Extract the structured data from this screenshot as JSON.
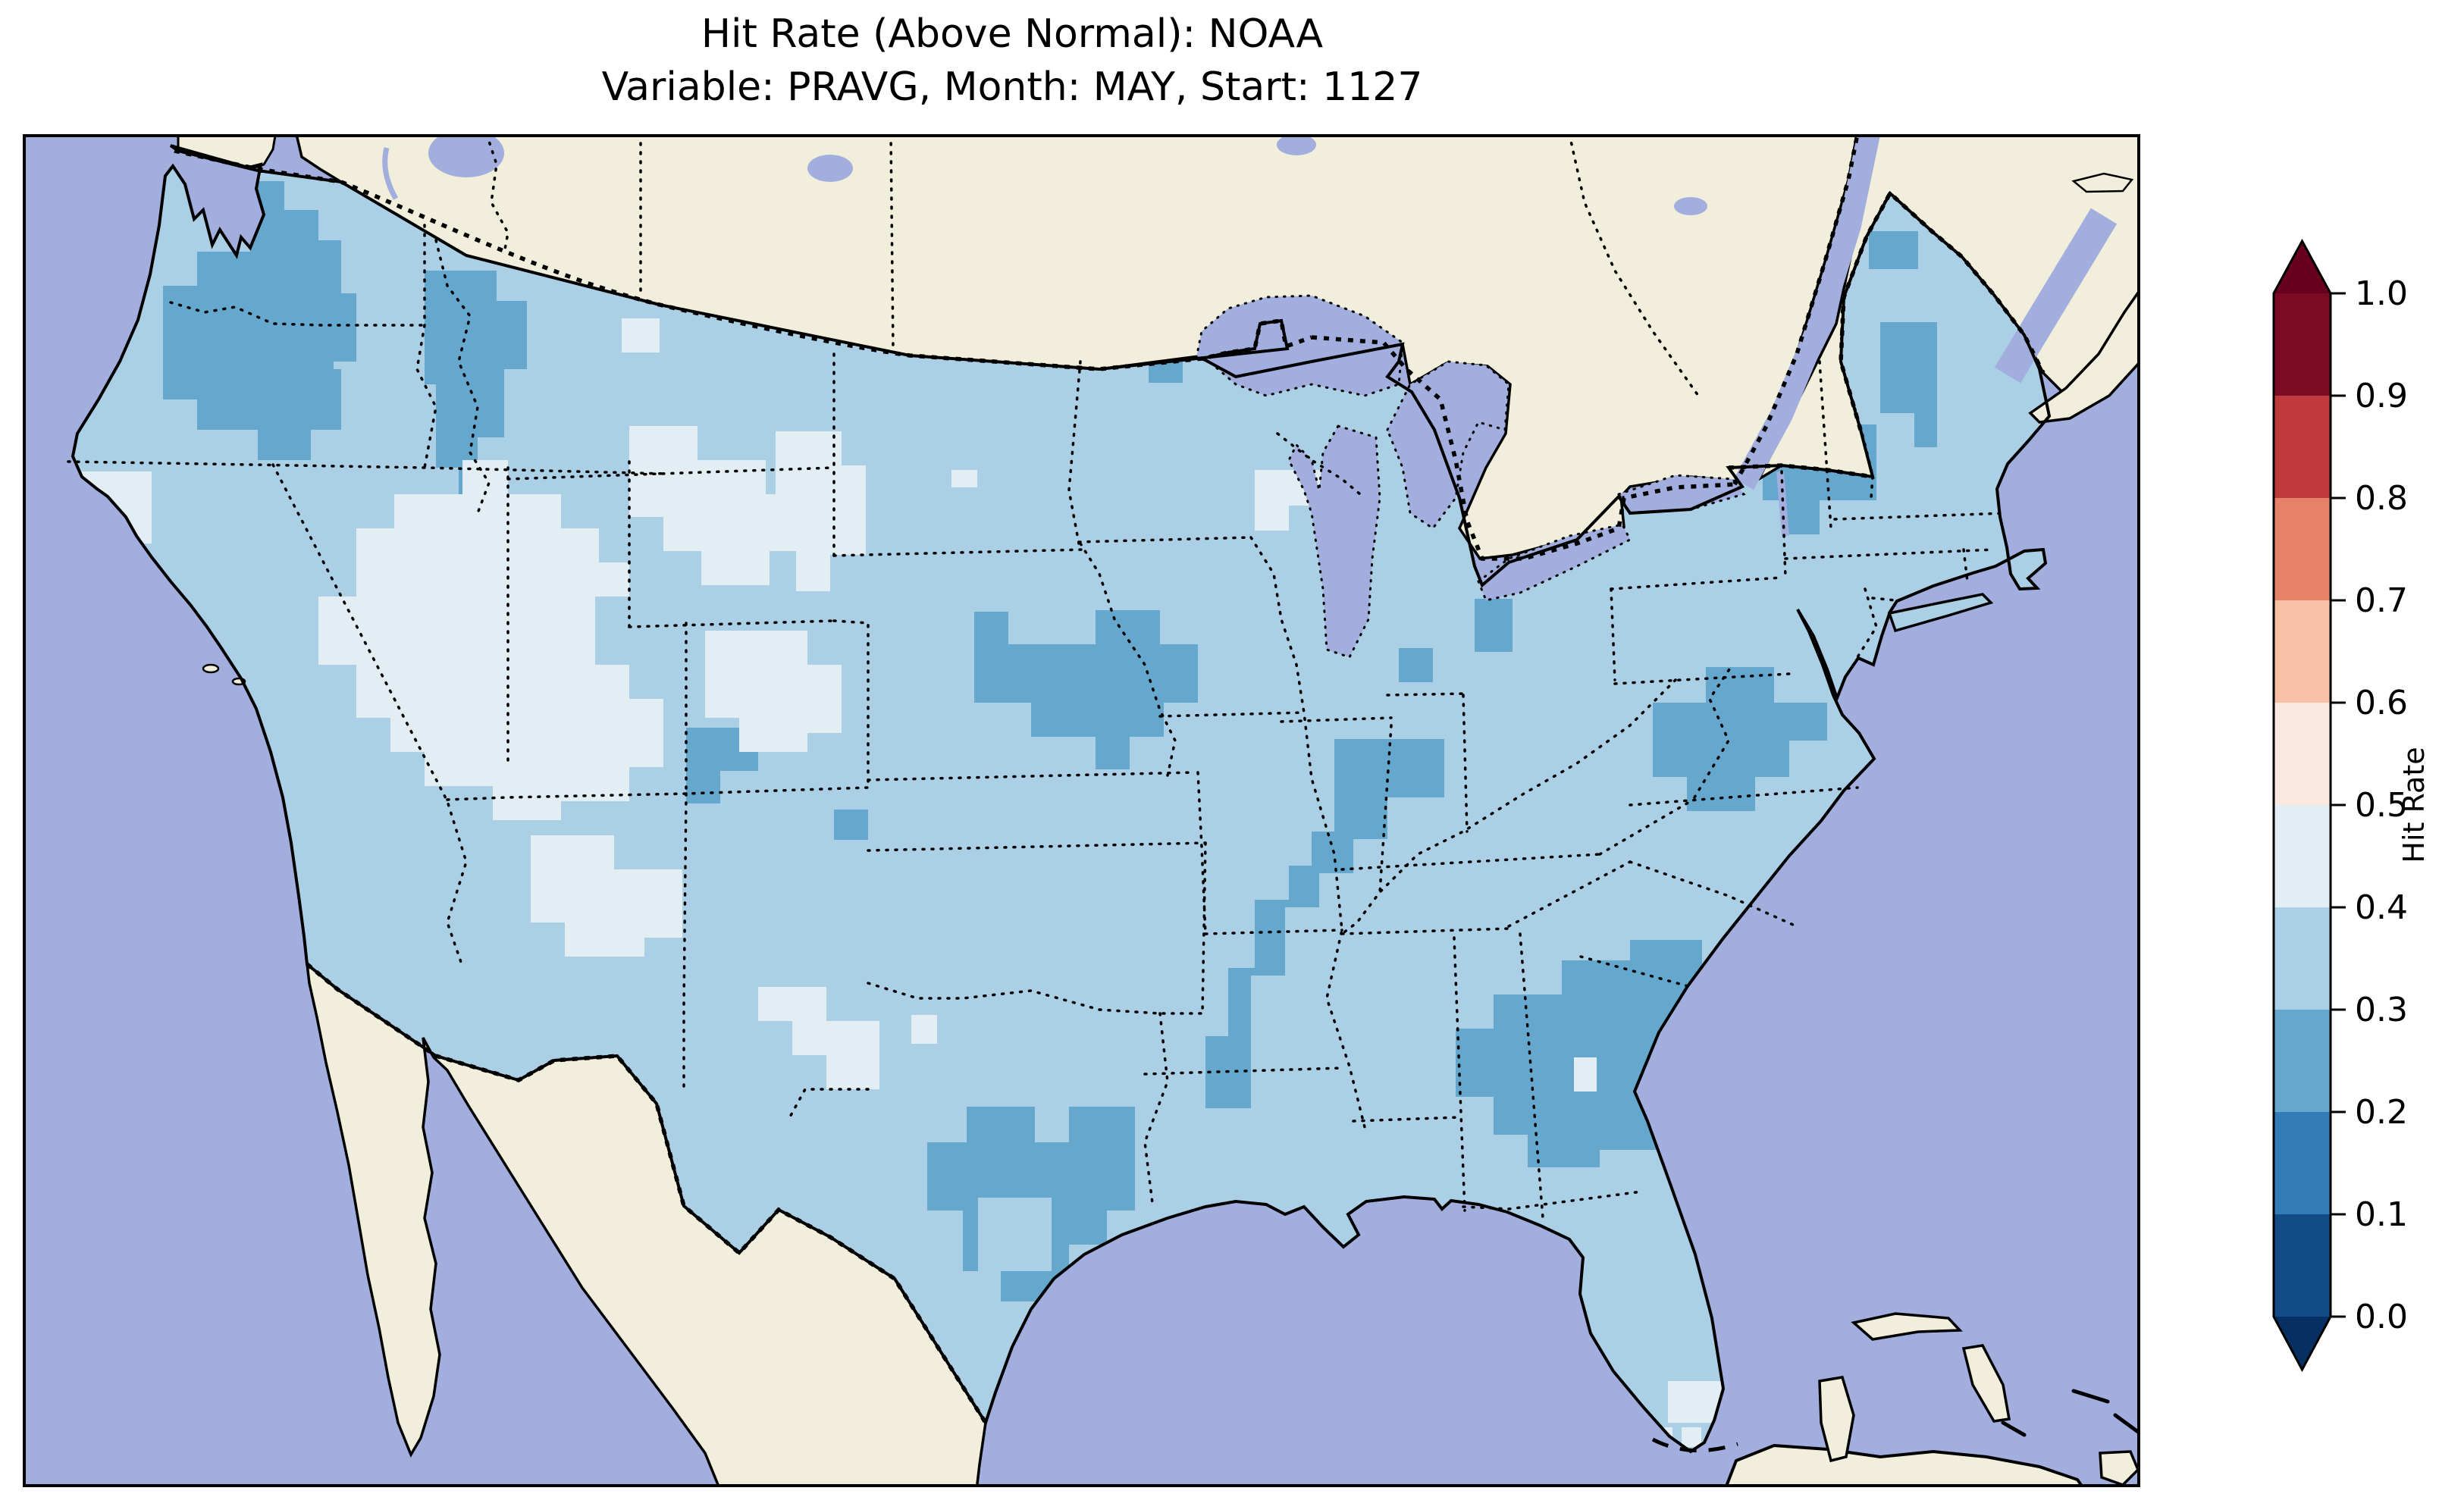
{
  "title": {
    "line1": "Hit Rate (Above Normal): NOAA",
    "line2": "Variable: PRAVG, Month: MAY, Start: 1127"
  },
  "colors": {
    "ocean": "#a2aedd",
    "lake": "#a2aedd",
    "land": "#f1eedb",
    "cell_base": "#abd0e6",
    "cell_dark": "#65a7cd",
    "cell_pale": "#e3edf4",
    "coastline": "#000000",
    "frame": "#000000"
  },
  "colorbar": {
    "label": "Hit Rate",
    "tick_labels": [
      "0.0",
      "0.1",
      "0.2",
      "0.3",
      "0.4",
      "0.5",
      "0.6",
      "0.7",
      "0.8",
      "0.9",
      "1.0"
    ],
    "bin_colors": [
      "#134b87",
      "#327cb7",
      "#65a7cd",
      "#abd0e6",
      "#e3edf4",
      "#fae9df",
      "#f8c0a4",
      "#e58267",
      "#c03a3d",
      "#7d0a23"
    ],
    "under_color": "#053061",
    "over_color": "#67001f",
    "outline_color": "#000000"
  },
  "chart_data": {
    "type": "heatmap",
    "title": "Hit Rate (Above Normal): NOAA",
    "subtitle": "Variable: PRAVG, Month: MAY, Start: 1127",
    "colorbar_label": "Hit Rate",
    "value_range": [
      0.0,
      1.0
    ],
    "bin_edges": [
      0.0,
      0.1,
      0.2,
      0.3,
      0.4,
      0.5,
      0.6,
      0.7,
      0.8,
      0.9,
      1.0
    ],
    "legend_position": "right, vertical colorbar with pointed over/under extensions",
    "geography": "Contiguous United States with surrounding Canada, Mexico, Cuba, Bahamas; Great Lakes and oceans shown",
    "regions": [
      {
        "region": "Most of contiguous US (default)",
        "hit_rate_bin": "0.3-0.4"
      },
      {
        "region": "Western Washington / Oregon (Pacific Northwest)",
        "hit_rate_bin": "0.2-0.3"
      },
      {
        "region": "Idaho panhandle",
        "hit_rate_bin": "0.2-0.3"
      },
      {
        "region": "Western Montana (Rocky Mountain Front)",
        "hit_rate_bin": "0.2-0.3"
      },
      {
        "region": "Northern Minnesota (near Lake Superior)",
        "hit_rate_bin": "0.2-0.3"
      },
      {
        "region": "Michigan (scattered cells)",
        "hit_rate_bin": "0.2-0.3"
      },
      {
        "region": "Nebraska / Kansas border area",
        "hit_rate_bin": "0.2-0.3"
      },
      {
        "region": "Ozarks and mid-Mississippi valley strip (MO/AR)",
        "hit_rate_bin": "0.2-0.3"
      },
      {
        "region": "Central / south Texas",
        "hit_rate_bin": "0.2-0.3"
      },
      {
        "region": "Georgia / South Carolina",
        "hit_rate_bin": "0.2-0.3"
      },
      {
        "region": "Eastern North Carolina / SE Virginia",
        "hit_rate_bin": "0.2-0.3"
      },
      {
        "region": "Vermont / New Hampshire and central & northern Maine",
        "hit_rate_bin": "0.2-0.3"
      },
      {
        "region": "Northeastern Utah (small patch)",
        "hit_rate_bin": "0.2-0.3"
      },
      {
        "region": "Great Basin (Nevada / western Utah)",
        "hit_rate_bin": "0.4-0.5"
      },
      {
        "region": "Central California coast",
        "hit_rate_bin": "0.4-0.5"
      },
      {
        "region": "Wyoming and Colorado patches",
        "hit_rate_bin": "0.4-0.5"
      },
      {
        "region": "Northern Arizona / southern New Mexico",
        "hit_rate_bin": "0.4-0.5"
      },
      {
        "region": "Western Dakotas (small patch)",
        "hit_rate_bin": "0.4-0.5"
      },
      {
        "region": "Green Bay, Wisconsin (small cells)",
        "hit_rate_bin": "0.4-0.5"
      },
      {
        "region": "South Florida tip and Keys cells",
        "hit_rate_bin": "0.4-0.5"
      }
    ]
  }
}
